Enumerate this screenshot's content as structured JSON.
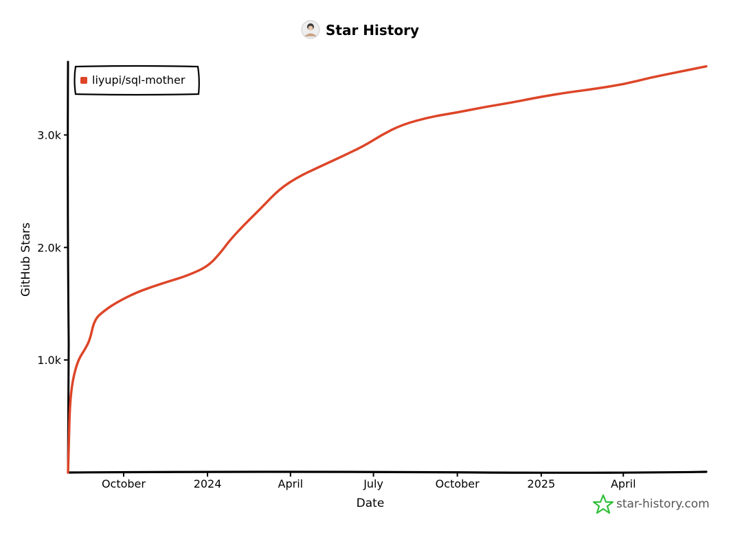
{
  "colors": {
    "series": "#dd4528",
    "axis": "#000000",
    "brand": "#2fbf3a",
    "brand_text": "#555555"
  },
  "header": {
    "title": "Star History",
    "avatar_icon": "user-avatar-icon"
  },
  "brand": {
    "label": "star-history.com",
    "icon": "star-logo-icon"
  },
  "chart_data": {
    "type": "line",
    "title": "Star History",
    "xlabel": "Date",
    "ylabel": "GitHub Stars",
    "xlim": [
      "2023-08-01",
      "2025-07-01"
    ],
    "ylim": [
      0,
      3650
    ],
    "x_ticks": [
      {
        "label": "October",
        "date": "2023-10-01"
      },
      {
        "label": "2024",
        "date": "2024-01-01"
      },
      {
        "label": "April",
        "date": "2024-04-01"
      },
      {
        "label": "July",
        "date": "2024-07-01"
      },
      {
        "label": "October",
        "date": "2024-10-01"
      },
      {
        "label": "2025",
        "date": "2025-01-01"
      },
      {
        "label": "April",
        "date": "2025-04-01"
      }
    ],
    "y_ticks": [
      {
        "label": "1.0k",
        "value": 1000
      },
      {
        "label": "2.0k",
        "value": 2000
      },
      {
        "label": "3.0k",
        "value": 3000
      }
    ],
    "legend": {
      "position": "top-left"
    },
    "series": [
      {
        "name": "liyupi/sql-mother",
        "points": [
          {
            "date": "2023-08-01",
            "value": 0
          },
          {
            "date": "2023-08-02",
            "value": 300
          },
          {
            "date": "2023-08-03",
            "value": 600
          },
          {
            "date": "2023-08-06",
            "value": 820
          },
          {
            "date": "2023-08-12",
            "value": 1000
          },
          {
            "date": "2023-08-20",
            "value": 1100
          },
          {
            "date": "2023-08-25",
            "value": 1180
          },
          {
            "date": "2023-08-30",
            "value": 1360
          },
          {
            "date": "2023-09-10",
            "value": 1440
          },
          {
            "date": "2023-09-25",
            "value": 1520
          },
          {
            "date": "2023-10-15",
            "value": 1600
          },
          {
            "date": "2023-11-01",
            "value": 1650
          },
          {
            "date": "2023-11-20",
            "value": 1700
          },
          {
            "date": "2023-12-10",
            "value": 1750
          },
          {
            "date": "2024-01-01",
            "value": 1830
          },
          {
            "date": "2024-01-15",
            "value": 1950
          },
          {
            "date": "2024-01-25",
            "value": 2060
          },
          {
            "date": "2024-02-10",
            "value": 2200
          },
          {
            "date": "2024-03-01",
            "value": 2360
          },
          {
            "date": "2024-03-20",
            "value": 2520
          },
          {
            "date": "2024-04-10",
            "value": 2630
          },
          {
            "date": "2024-05-01",
            "value": 2710
          },
          {
            "date": "2024-05-25",
            "value": 2800
          },
          {
            "date": "2024-06-20",
            "value": 2900
          },
          {
            "date": "2024-07-10",
            "value": 3000
          },
          {
            "date": "2024-08-01",
            "value": 3090
          },
          {
            "date": "2024-09-01",
            "value": 3160
          },
          {
            "date": "2024-10-01",
            "value": 3200
          },
          {
            "date": "2024-11-01",
            "value": 3250
          },
          {
            "date": "2024-12-01",
            "value": 3290
          },
          {
            "date": "2025-01-01",
            "value": 3340
          },
          {
            "date": "2025-02-01",
            "value": 3380
          },
          {
            "date": "2025-03-01",
            "value": 3410
          },
          {
            "date": "2025-04-01",
            "value": 3450
          },
          {
            "date": "2025-05-01",
            "value": 3510
          },
          {
            "date": "2025-06-01",
            "value": 3560
          },
          {
            "date": "2025-07-01",
            "value": 3610
          }
        ]
      }
    ]
  }
}
